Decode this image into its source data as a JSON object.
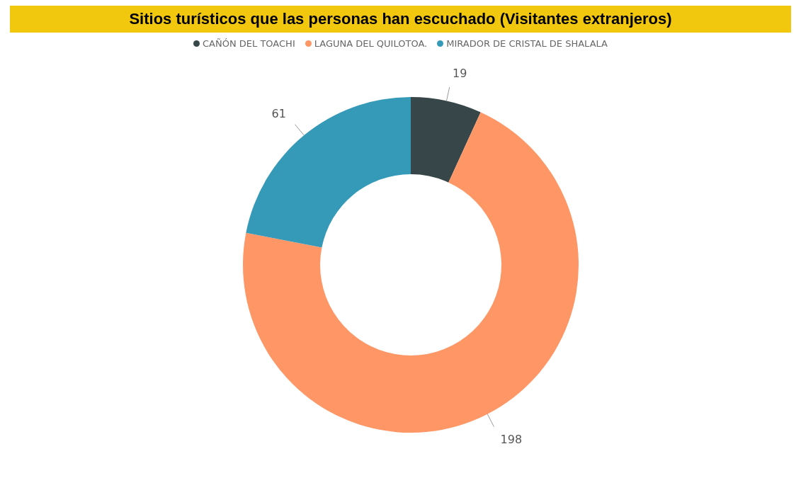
{
  "chart_data": {
    "type": "donut",
    "title": "Sitios turísticos que las personas han escuchado (Visitantes extranjeros)",
    "categories": [
      "CAÑÓN DEL TOACHI",
      "LAGUNA DEL QUILOTOA.",
      "MIRADOR DE CRISTAL DE SHALALA"
    ],
    "values": [
      19,
      198,
      61
    ],
    "colors": [
      "#374649",
      "#fe9666",
      "#3599b8"
    ],
    "data_labels": true,
    "legend": "top"
  }
}
